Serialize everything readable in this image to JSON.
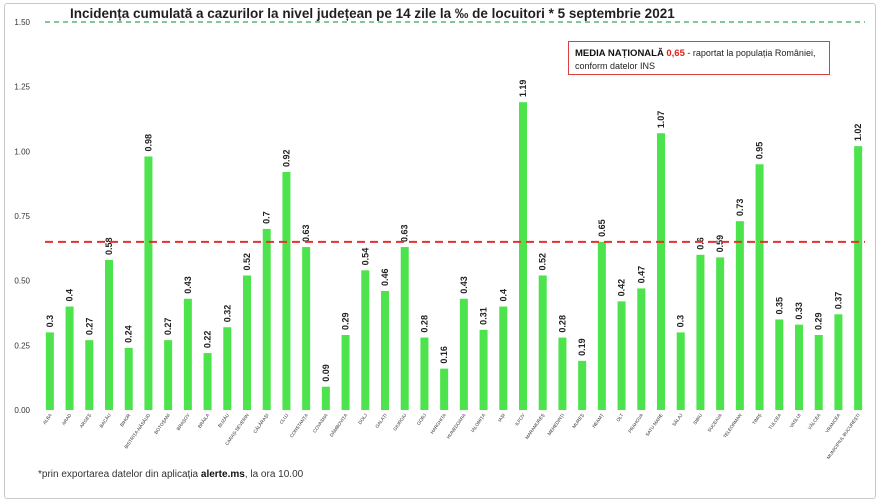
{
  "chart_data": {
    "type": "bar",
    "title": "Incidența cumulată a cazurilor la nivel județean pe 14 zile la ‰ de locuitori * 5 septembrie 2021",
    "xlabel": "",
    "ylabel": "",
    "ylim": [
      0,
      1.5
    ],
    "yticks": [
      "0.00",
      "0.25",
      "0.50",
      "0.75",
      "1.00",
      "1.25",
      "1.50"
    ],
    "grid": false,
    "bar_color": "#4ce34c",
    "reference_lines": [
      {
        "value": 0.65,
        "color": "#e53030",
        "style": "dashed"
      },
      {
        "value": 1.5,
        "color": "#3aa35c",
        "style": "dashed"
      }
    ],
    "categories": [
      "ALBA",
      "ARAD",
      "ARGEȘ",
      "BACĂU",
      "BIHOR",
      "BISTRIȚA-NĂSĂUD",
      "BOTOȘANI",
      "BRAȘOV",
      "BRĂILA",
      "BUZĂU",
      "CARAȘ-SEVERIN",
      "CĂLĂRAȘI",
      "CLUJ",
      "CONSTANȚA",
      "COVASNA",
      "DÂMBOVIȚA",
      "DOLJ",
      "GALAȚI",
      "GIURGIU",
      "GORJ",
      "HARGHITA",
      "HUNEDOARA",
      "IALOMIȚA",
      "IAȘI",
      "ILFOV",
      "MARAMUREȘ",
      "MEHEDINȚI",
      "MUREȘ",
      "NEAMȚ",
      "OLT",
      "PRAHOVA",
      "SATU MARE",
      "SĂLAJ",
      "SIBIU",
      "SUCEAVA",
      "TELEORMAN",
      "TIMIȘ",
      "TULCEA",
      "VASLUI",
      "VÂLCEA",
      "VRANCEA",
      "MUNICIPIUL BUCUREȘTI"
    ],
    "values": [
      0.3,
      0.4,
      0.27,
      0.58,
      0.24,
      0.98,
      0.27,
      0.43,
      0.22,
      0.32,
      0.52,
      0.7,
      0.92,
      0.63,
      0.09,
      0.29,
      0.54,
      0.46,
      0.63,
      0.28,
      0.16,
      0.43,
      0.31,
      0.4,
      1.19,
      0.52,
      0.28,
      0.19,
      0.65,
      0.42,
      0.47,
      1.07,
      0.3,
      0.6,
      0.59,
      0.73,
      0.95,
      0.35,
      0.33,
      0.29,
      0.37,
      1.02
    ],
    "data_labels": [
      "0.3",
      "0.4",
      "0.27",
      "0.58",
      "0.24",
      "0.98",
      "0.27",
      "0.43",
      "0.22",
      "0.32",
      "0.52",
      "0.7",
      "0.92",
      "0.63",
      "0.09",
      "0.29",
      "0.54",
      "0.46",
      "0.63",
      "0.28",
      "0.16",
      "0.43",
      "0.31",
      "0.4",
      "1.19",
      "0.52",
      "0.28",
      "0.19",
      "0.65",
      "0.42",
      "0.47",
      "1.07",
      "0.3",
      "0.6",
      "0.59",
      "0.73",
      "0.95",
      "0.35",
      "0.33",
      "0.29",
      "0.37",
      "1.02"
    ]
  },
  "legend": {
    "label": "MEDIA NAȚIONALĂ",
    "value": "0,65",
    "text1": "- raportat la populația României,",
    "text2": "conform datelor INS"
  },
  "footnote": {
    "prefix": "*prin exportarea datelor din aplicația ",
    "app": "alerte.ms",
    "suffix": ", la ora 10.00"
  }
}
